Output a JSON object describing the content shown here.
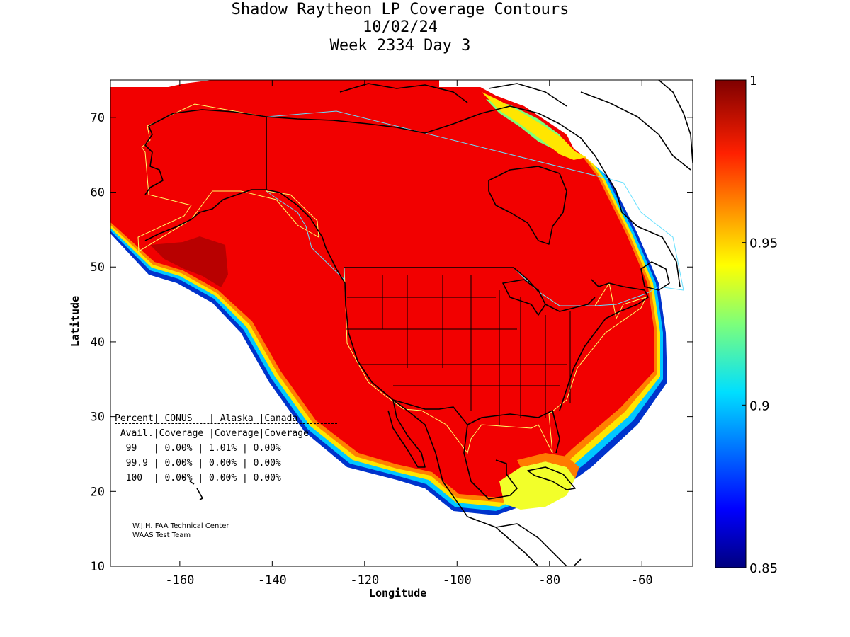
{
  "title": {
    "line1": "Shadow Raytheon LP Coverage Contours",
    "line2": "10/02/24",
    "line3": "Week 2334 Day 3"
  },
  "axes": {
    "xlabel": "Longitude",
    "ylabel": "Latitude",
    "xlim": [
      -175,
      -49
    ],
    "ylim": [
      10,
      75
    ],
    "xticks": [
      -160,
      -140,
      -120,
      -100,
      -80,
      -60
    ],
    "yticks": [
      10,
      20,
      30,
      40,
      50,
      60,
      70
    ]
  },
  "colorbar": {
    "range": [
      0.85,
      1
    ],
    "ticks": [
      "0.85",
      "0.9",
      "0.95",
      "1"
    ]
  },
  "table": {
    "header1": "Percent| CONUS   | Alaska |Canada",
    "header2": " Avail.|Coverage |Coverage|Coverage",
    "row1": "  99   | 0.00% | 1.01% | 0.00%",
    "row2": "  99.9 | 0.00% | 0.00% | 0.00%",
    "row3": "  100  | 0.00% | 0.00% | 0.00%"
  },
  "credit": {
    "line1": "W.J.H. FAA Technical Center",
    "line2": "WAAS Test Team"
  },
  "colors": {
    "coverage_fill": "#f20000",
    "peak_fill": "#b80000",
    "land_outline": "#000000",
    "region_outline_conus": "#ffff66",
    "region_outline_canada": "#66e0ff"
  }
}
